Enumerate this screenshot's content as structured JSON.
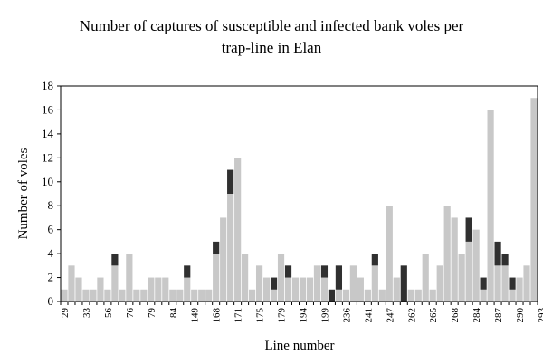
{
  "chart_data": {
    "type": "bar",
    "stacked": true,
    "title": "Number of captures of susceptible and infected bank voles per trap-line in Elan",
    "title_lines": [
      "Number of captures of susceptible and infected bank voles per",
      "trap-line in Elan"
    ],
    "xlabel": "Line number",
    "ylabel": "Number of voles",
    "ylim": [
      0,
      18
    ],
    "yticks": [
      0,
      2,
      4,
      6,
      8,
      10,
      12,
      14,
      16,
      18
    ],
    "xtick_labels": [
      "29",
      "33",
      "56",
      "76",
      "79",
      "84",
      "149",
      "168",
      "171",
      "175",
      "179",
      "194",
      "199",
      "236",
      "241",
      "247",
      "262",
      "265",
      "268",
      "284",
      "287",
      "290",
      "293"
    ],
    "grid": false,
    "legend": "none",
    "colors": {
      "susceptible": "#c8c8c8",
      "infected": "#303030"
    },
    "series": [
      {
        "values": [
          1,
          3,
          2,
          1,
          1,
          2,
          1,
          3,
          1,
          4,
          1,
          1,
          2,
          2,
          2,
          1,
          1,
          2,
          1,
          1,
          1,
          4,
          7,
          9,
          12,
          4,
          1,
          3,
          2,
          1,
          4,
          2,
          2,
          2,
          2,
          3,
          2,
          0,
          1,
          1,
          3,
          2,
          1,
          3,
          1,
          8,
          2,
          0,
          1,
          1,
          4,
          1,
          3,
          8,
          7,
          4,
          5,
          6,
          1,
          16,
          3,
          3,
          1,
          2,
          3,
          17
        ]
      },
      {
        "values": [
          0,
          0,
          0,
          0,
          0,
          0,
          0,
          1,
          0,
          0,
          0,
          0,
          0,
          0,
          0,
          0,
          0,
          1,
          0,
          0,
          0,
          1,
          0,
          2,
          0,
          0,
          0,
          0,
          0,
          1,
          0,
          1,
          0,
          0,
          0,
          0,
          1,
          1,
          2,
          0,
          0,
          0,
          0,
          1,
          0,
          0,
          0,
          3,
          0,
          0,
          0,
          0,
          0,
          0,
          0,
          0,
          2,
          0,
          1,
          0,
          2,
          1,
          1,
          0,
          0,
          0
        ]
      }
    ]
  }
}
